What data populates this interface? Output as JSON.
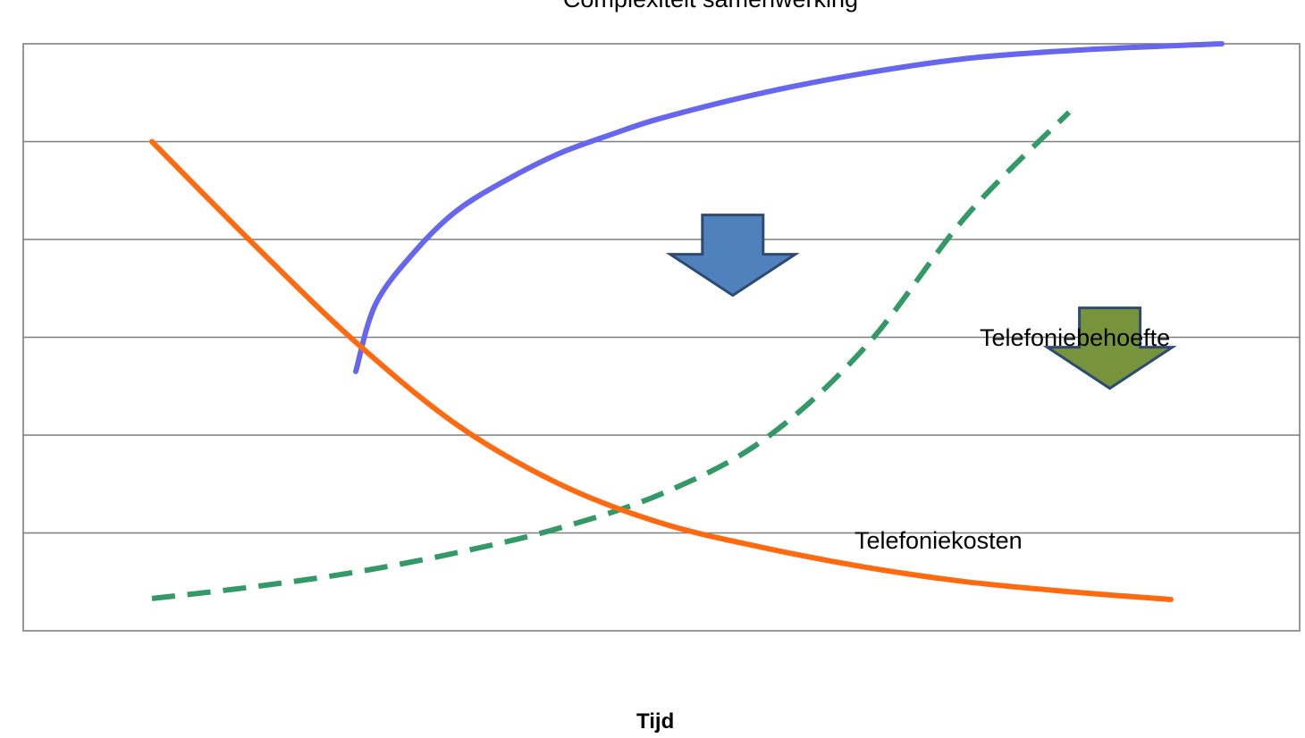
{
  "chart_data": {
    "type": "line",
    "title": "Complexiteit samenwerking",
    "xlabel": "Tijd",
    "ylabel": "",
    "xlim": [
      0,
      10
    ],
    "ylim": [
      0,
      6
    ],
    "grid": true,
    "legend": "none",
    "series": [
      {
        "name": "Complexiteit samenwerking",
        "color": "#6666ee",
        "style": "solid",
        "points": [
          [
            2.0,
            2.65
          ],
          [
            2.2,
            3.35
          ],
          [
            2.6,
            3.9
          ],
          [
            3.0,
            4.3
          ],
          [
            3.5,
            4.62
          ],
          [
            4.0,
            4.88
          ],
          [
            4.5,
            5.07
          ],
          [
            5.0,
            5.24
          ],
          [
            6.0,
            5.5
          ],
          [
            7.0,
            5.7
          ],
          [
            8.0,
            5.85
          ],
          [
            9.0,
            5.93
          ],
          [
            10.0,
            5.98
          ],
          [
            10.5,
            6.0
          ]
        ]
      },
      {
        "name": "Telefoniebehoefte",
        "color": "#339966",
        "style": "dashed",
        "points": [
          [
            0.0,
            0.33
          ],
          [
            1.0,
            0.45
          ],
          [
            2.0,
            0.6
          ],
          [
            3.0,
            0.8
          ],
          [
            4.0,
            1.05
          ],
          [
            5.0,
            1.4
          ],
          [
            6.0,
            1.95
          ],
          [
            7.0,
            2.9
          ],
          [
            8.0,
            4.25
          ],
          [
            9.0,
            5.3
          ]
        ]
      },
      {
        "name": "Telefoniekosten",
        "color": "#ff6a10",
        "style": "solid",
        "points": [
          [
            0.0,
            5.0
          ],
          [
            1.0,
            3.95
          ],
          [
            2.0,
            2.95
          ],
          [
            3.0,
            2.1
          ],
          [
            4.0,
            1.5
          ],
          [
            5.0,
            1.1
          ],
          [
            6.0,
            0.85
          ],
          [
            7.0,
            0.65
          ],
          [
            8.0,
            0.5
          ],
          [
            9.0,
            0.4
          ],
          [
            10.0,
            0.32
          ]
        ]
      }
    ],
    "arrows": [
      {
        "series": "Complexiteit samenwerking",
        "x": 5.7,
        "y": 4.25,
        "color": "#4f81bd",
        "direction": "down"
      },
      {
        "series": "Telefoniebehoefte",
        "x": 9.4,
        "y": 3.3,
        "color": "#77933c",
        "direction": "down"
      }
    ]
  }
}
